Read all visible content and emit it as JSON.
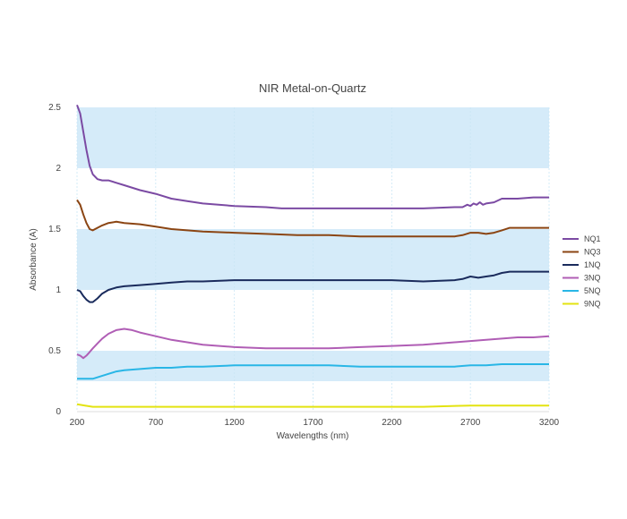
{
  "chart_data": {
    "type": "line",
    "title": "NIR Metal-on-Quartz",
    "xlabel": "Wavelengths (nm)",
    "ylabel": "Absorbance (A)",
    "xlim": [
      200,
      3200
    ],
    "ylim": [
      0,
      2.5
    ],
    "x_ticks": [
      "200",
      "700",
      "1200",
      "1700",
      "2200",
      "2700",
      "3200"
    ],
    "y_ticks": [
      "0",
      "0.5",
      "1",
      "1.5",
      "2",
      "2.5"
    ],
    "bands": [
      [
        0.25,
        0.5
      ],
      [
        1.0,
        1.5
      ],
      [
        2.0,
        2.5
      ]
    ],
    "band_color": "#d5ebf9",
    "legend_position": "right",
    "series": [
      {
        "name": "NQ1",
        "color": "#7b4aa3",
        "x": [
          200,
          220,
          240,
          260,
          280,
          300,
          330,
          360,
          400,
          450,
          500,
          600,
          700,
          800,
          900,
          1000,
          1200,
          1400,
          1500,
          1600,
          1800,
          2000,
          2200,
          2400,
          2600,
          2650,
          2680,
          2700,
          2720,
          2740,
          2760,
          2780,
          2800,
          2850,
          2900,
          2950,
          3000,
          3100,
          3200
        ],
        "y": [
          2.52,
          2.45,
          2.3,
          2.15,
          2.02,
          1.95,
          1.91,
          1.9,
          1.9,
          1.88,
          1.86,
          1.82,
          1.79,
          1.75,
          1.73,
          1.71,
          1.69,
          1.68,
          1.67,
          1.67,
          1.67,
          1.67,
          1.67,
          1.67,
          1.68,
          1.68,
          1.7,
          1.69,
          1.71,
          1.7,
          1.72,
          1.7,
          1.71,
          1.72,
          1.75,
          1.75,
          1.75,
          1.76,
          1.76
        ]
      },
      {
        "name": "NQ3",
        "color": "#8b4513",
        "x": [
          200,
          220,
          240,
          260,
          280,
          300,
          330,
          360,
          400,
          450,
          500,
          600,
          700,
          800,
          900,
          1000,
          1200,
          1400,
          1600,
          1800,
          2000,
          2200,
          2400,
          2600,
          2650,
          2700,
          2750,
          2800,
          2850,
          2900,
          2950,
          3000,
          3100,
          3200
        ],
        "y": [
          1.74,
          1.7,
          1.62,
          1.55,
          1.5,
          1.49,
          1.51,
          1.53,
          1.55,
          1.56,
          1.55,
          1.54,
          1.52,
          1.5,
          1.49,
          1.48,
          1.47,
          1.46,
          1.45,
          1.45,
          1.44,
          1.44,
          1.44,
          1.44,
          1.45,
          1.47,
          1.47,
          1.46,
          1.47,
          1.49,
          1.51,
          1.51,
          1.51,
          1.51
        ]
      },
      {
        "name": "1NQ",
        "color": "#1a2b5c",
        "x": [
          200,
          220,
          240,
          260,
          280,
          300,
          330,
          360,
          400,
          450,
          500,
          600,
          700,
          800,
          900,
          1000,
          1200,
          1400,
          1600,
          1800,
          2000,
          2200,
          2400,
          2600,
          2650,
          2700,
          2750,
          2800,
          2850,
          2900,
          2950,
          3000,
          3100,
          3200
        ],
        "y": [
          1.0,
          0.99,
          0.95,
          0.92,
          0.9,
          0.9,
          0.93,
          0.97,
          1.0,
          1.02,
          1.03,
          1.04,
          1.05,
          1.06,
          1.07,
          1.07,
          1.08,
          1.08,
          1.08,
          1.08,
          1.08,
          1.08,
          1.07,
          1.08,
          1.09,
          1.11,
          1.1,
          1.11,
          1.12,
          1.14,
          1.15,
          1.15,
          1.15,
          1.15
        ]
      },
      {
        "name": "3NQ",
        "color": "#b05eb5",
        "x": [
          200,
          220,
          240,
          260,
          280,
          300,
          330,
          360,
          400,
          450,
          500,
          550,
          600,
          700,
          800,
          900,
          1000,
          1200,
          1400,
          1600,
          1800,
          2000,
          2200,
          2400,
          2600,
          2700,
          2800,
          2900,
          3000,
          3100,
          3200
        ],
        "y": [
          0.47,
          0.46,
          0.44,
          0.46,
          0.49,
          0.52,
          0.56,
          0.6,
          0.64,
          0.67,
          0.68,
          0.67,
          0.65,
          0.62,
          0.59,
          0.57,
          0.55,
          0.53,
          0.52,
          0.52,
          0.52,
          0.53,
          0.54,
          0.55,
          0.57,
          0.58,
          0.59,
          0.6,
          0.61,
          0.61,
          0.62
        ]
      },
      {
        "name": "5NQ",
        "color": "#29b6e6",
        "x": [
          200,
          250,
          300,
          350,
          400,
          450,
          500,
          600,
          700,
          800,
          900,
          1000,
          1200,
          1400,
          1600,
          1800,
          2000,
          2200,
          2400,
          2600,
          2700,
          2800,
          2900,
          3000,
          3100,
          3200
        ],
        "y": [
          0.27,
          0.27,
          0.27,
          0.29,
          0.31,
          0.33,
          0.34,
          0.35,
          0.36,
          0.36,
          0.37,
          0.37,
          0.38,
          0.38,
          0.38,
          0.38,
          0.37,
          0.37,
          0.37,
          0.37,
          0.38,
          0.38,
          0.39,
          0.39,
          0.39,
          0.39
        ]
      },
      {
        "name": "9NQ",
        "color": "#e3e311",
        "x": [
          200,
          250,
          300,
          400,
          600,
          800,
          1200,
          1600,
          2000,
          2400,
          2700,
          3000,
          3200
        ],
        "y": [
          0.06,
          0.05,
          0.04,
          0.04,
          0.04,
          0.04,
          0.04,
          0.04,
          0.04,
          0.04,
          0.05,
          0.05,
          0.05
        ]
      }
    ]
  }
}
